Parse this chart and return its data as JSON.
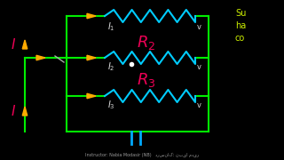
{
  "bg_color": "#000000",
  "wire_color": "#00ee00",
  "resistor_color": "#00ccff",
  "label_color": "#ee0055",
  "current_arrow_color": "#ffaa00",
  "I_label_color": "#ee0055",
  "sub_label_color": "#dddddd",
  "bottom_wire_color": "#00aaff",
  "dot_color": "#ffffff",
  "instructor_text": "Instructor: Nabia Modasir (NB)   درسناک: نبیا مدیر",
  "side_text_color": "#ccee00",
  "side_texts": [
    "Su",
    "ha",
    "co"
  ]
}
